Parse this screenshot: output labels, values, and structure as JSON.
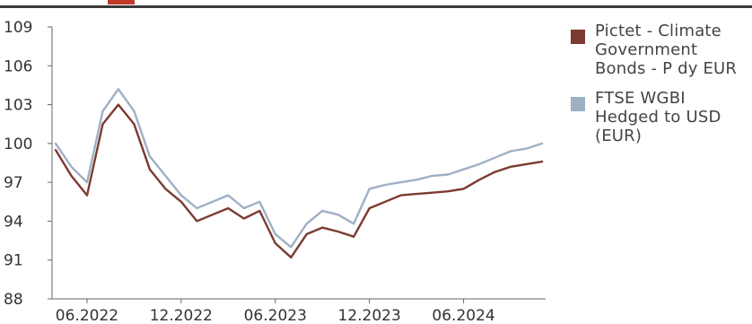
{
  "colors": {
    "pictet": "#7b3b31",
    "ftse": "#9fb0c4",
    "axis": "#666666",
    "accent": "#c0392b"
  },
  "chart_data": {
    "type": "line",
    "title": "",
    "xlabel": "",
    "ylabel": "",
    "ylim": [
      88,
      109
    ],
    "yticks": [
      "109",
      "106",
      "103",
      "100",
      "97",
      "94",
      "91",
      "88"
    ],
    "xticks": [
      "06.2022",
      "12.2022",
      "06.2023",
      "12.2023",
      "06.2024"
    ],
    "grid": false,
    "legend_position": "right",
    "x": [
      "2022-04",
      "2022-05",
      "2022-06",
      "2022-07",
      "2022-08",
      "2022-09",
      "2022-10",
      "2022-11",
      "2022-12",
      "2023-01",
      "2023-02",
      "2023-03",
      "2023-04",
      "2023-05",
      "2023-06",
      "2023-07",
      "2023-08",
      "2023-09",
      "2023-10",
      "2023-11",
      "2023-12",
      "2024-01",
      "2024-02",
      "2024-03",
      "2024-04",
      "2024-05",
      "2024-06",
      "2024-07",
      "2024-08",
      "2024-09",
      "2024-10",
      "2024-11"
    ],
    "series": [
      {
        "name": "Pictet - Climate Government Bonds - P dy EUR",
        "color": "#7b3b31",
        "values": [
          99.5,
          97.5,
          96.0,
          101.5,
          103.0,
          101.5,
          98.0,
          96.5,
          95.5,
          94.0,
          94.5,
          95.0,
          94.2,
          94.8,
          92.3,
          91.2,
          93.0,
          93.5,
          93.2,
          92.8,
          95.0,
          95.5,
          96.0,
          96.1,
          96.2,
          96.3,
          96.5,
          97.2,
          97.8,
          98.2,
          98.4,
          98.6
        ]
      },
      {
        "name": "FTSE WGBI Hedged to USD (EUR)",
        "color": "#9fb0c4",
        "values": [
          100.0,
          98.2,
          97.0,
          102.5,
          104.2,
          102.5,
          99.0,
          97.5,
          96.0,
          95.0,
          95.5,
          96.0,
          95.0,
          95.5,
          93.0,
          92.0,
          93.8,
          94.8,
          94.5,
          93.8,
          96.5,
          96.8,
          97.0,
          97.2,
          97.5,
          97.6,
          98.0,
          98.4,
          98.9,
          99.4,
          99.6,
          100.0
        ]
      }
    ]
  },
  "legend": [
    {
      "label": "Pictet - Climate Government Bonds - P dy EUR"
    },
    {
      "label": "FTSE WGBI Hedged to USD (EUR)"
    }
  ]
}
